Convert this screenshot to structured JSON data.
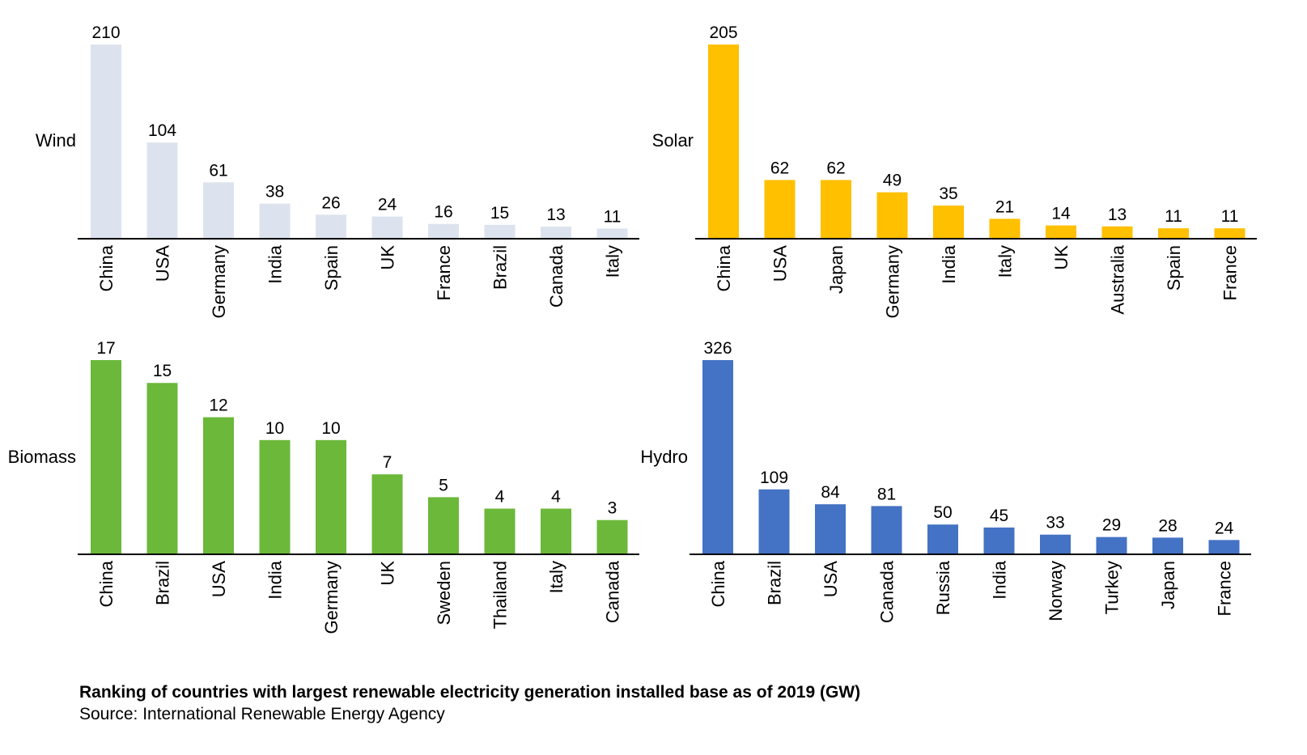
{
  "chart_data": [
    {
      "type": "bar",
      "label": "Wind",
      "color": "#dde3ee",
      "categories": [
        "China",
        "USA",
        "Germany",
        "India",
        "Spain",
        "UK",
        "France",
        "Brazil",
        "Canada",
        "Italy"
      ],
      "values": [
        210,
        104,
        61,
        38,
        26,
        24,
        16,
        15,
        13,
        11
      ]
    },
    {
      "type": "bar",
      "label": "Solar",
      "color": "#ffc000",
      "categories": [
        "China",
        "USA",
        "Japan",
        "Germany",
        "India",
        "Italy",
        "UK",
        "Australia",
        "Spain",
        "France"
      ],
      "values": [
        205,
        62,
        62,
        49,
        35,
        21,
        14,
        13,
        11,
        11
      ]
    },
    {
      "type": "bar",
      "label": "Biomass",
      "color": "#6bb83a",
      "categories": [
        "China",
        "Brazil",
        "USA",
        "India",
        "Germany",
        "UK",
        "Sweden",
        "Thailand",
        "Italy",
        "Canada"
      ],
      "values": [
        17,
        15,
        12,
        10,
        10,
        7,
        5,
        4,
        4,
        3
      ]
    },
    {
      "type": "bar",
      "label": "Hydro",
      "color": "#4472c4",
      "categories": [
        "China",
        "Brazil",
        "USA",
        "Canada",
        "Russia",
        "India",
        "Norway",
        "Turkey",
        "Japan",
        "France"
      ],
      "values": [
        326,
        109,
        84,
        81,
        50,
        45,
        33,
        29,
        28,
        24
      ]
    }
  ],
  "footer": {
    "title": "Ranking of countries with largest renewable electricity generation installed base as of 2019 (GW)",
    "source": "Source: International Renewable Energy Agency"
  }
}
